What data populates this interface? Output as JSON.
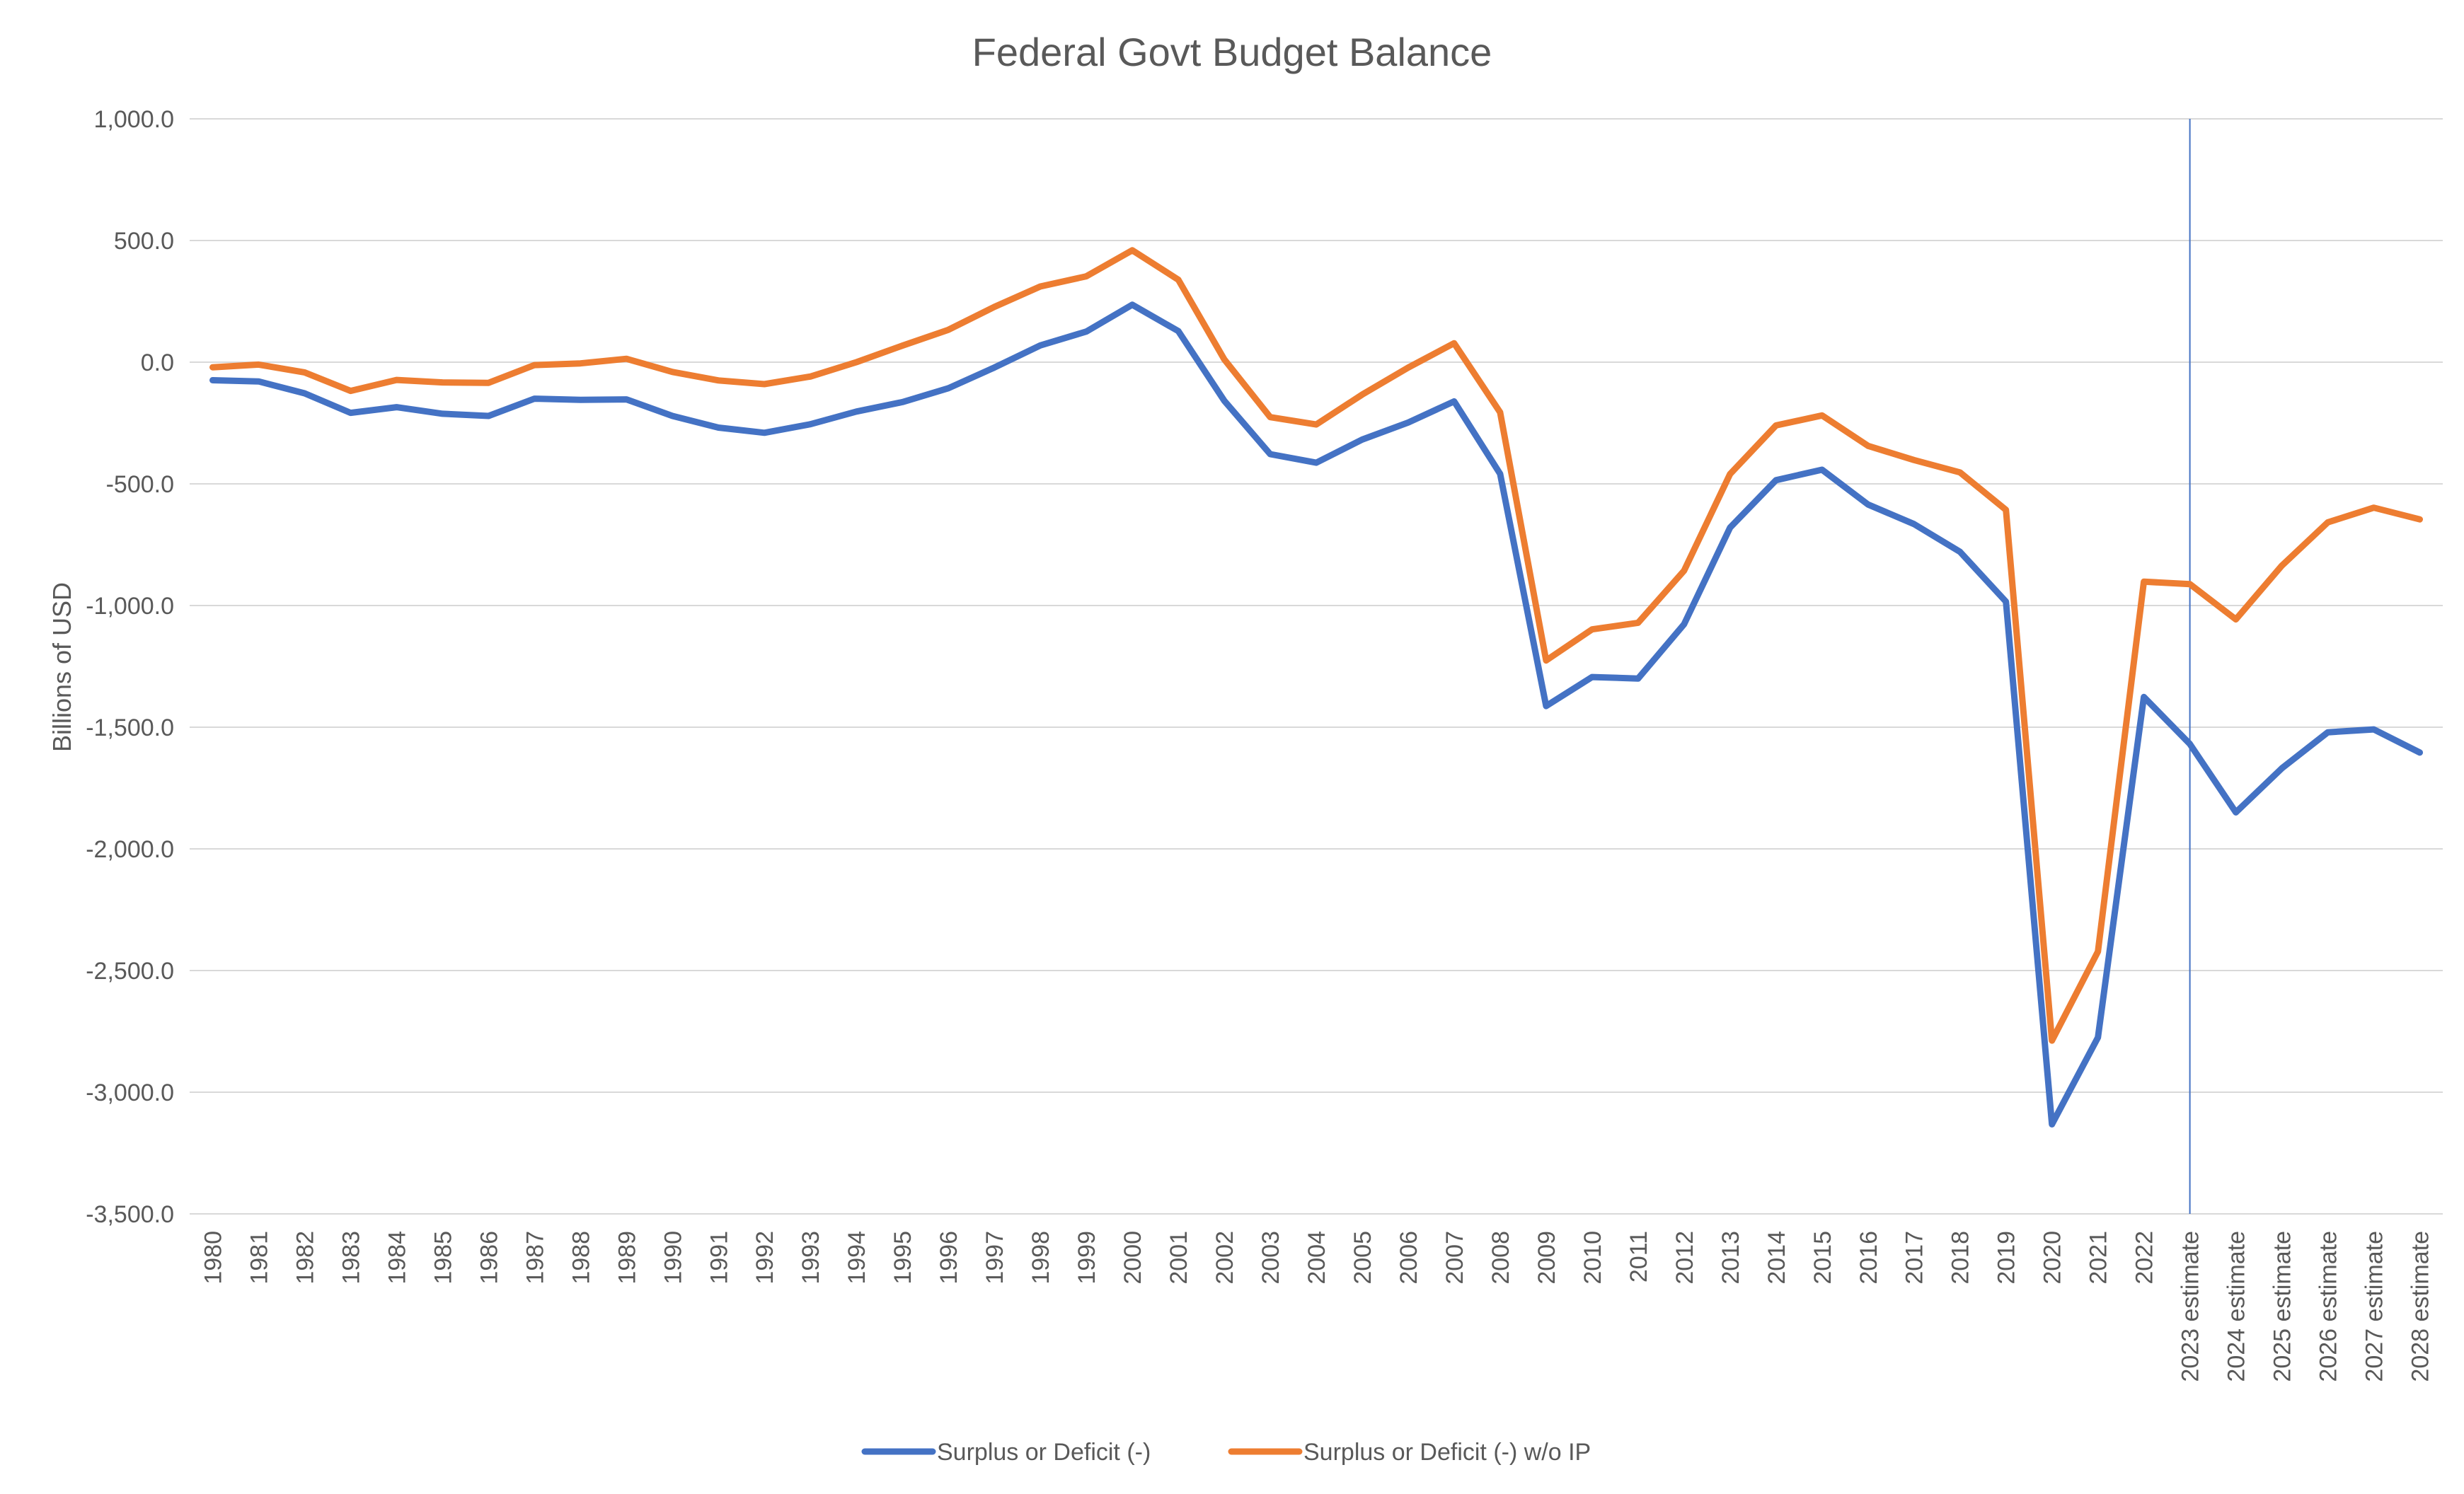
{
  "chart_data": {
    "type": "line",
    "title": "Federal Govt Budget Balance",
    "xlabel": "",
    "ylabel": "Billions of USD",
    "ylim": [
      -3500,
      1000
    ],
    "yticks": [
      1000,
      500,
      0,
      -500,
      -1000,
      -1500,
      -2000,
      -2500,
      -3000,
      -3500
    ],
    "ytick_labels": [
      "1,000.0",
      "500.0",
      "0.0",
      "-500.0",
      "-1,000.0",
      "-1,500.0",
      "-2,000.0",
      "-2,500.0",
      "-3,000.0",
      "-3,500.0"
    ],
    "grid": true,
    "legend": "bottom",
    "vertical_marker": "2023 estimate",
    "categories": [
      "1980",
      "1981",
      "1982",
      "1983",
      "1984",
      "1985",
      "1986",
      "1987",
      "1988",
      "1989",
      "1990",
      "1991",
      "1992",
      "1993",
      "1994",
      "1995",
      "1996",
      "1997",
      "1998",
      "1999",
      "2000",
      "2001",
      "2002",
      "2003",
      "2004",
      "2005",
      "2006",
      "2007",
      "2008",
      "2009",
      "2010",
      "2011",
      "2012",
      "2013",
      "2014",
      "2015",
      "2016",
      "2017",
      "2018",
      "2019",
      "2020",
      "2021",
      "2022",
      "2023 estimate",
      "2024 estimate",
      "2025 estimate",
      "2026 estimate",
      "2027 estimate",
      "2028 estimate"
    ],
    "series": [
      {
        "name": "Surplus or Deficit (-)",
        "color": "#4472C4",
        "values": [
          -74,
          -79,
          -128,
          -208,
          -185,
          -212,
          -221,
          -150,
          -155,
          -153,
          -221,
          -269,
          -290,
          -255,
          -203,
          -164,
          -107,
          -22,
          69,
          126,
          236,
          128,
          -158,
          -378,
          -413,
          -318,
          -248,
          -161,
          -459,
          -1413,
          -1294,
          -1300,
          -1077,
          -680,
          -485,
          -442,
          -585,
          -665,
          -779,
          -984,
          -3132,
          -2775,
          -1376,
          -1569,
          -1850,
          -1669,
          -1521,
          -1509,
          -1604
        ]
      },
      {
        "name": "Surplus or Deficit (-) w/o IP",
        "color": "#ED7D31",
        "values": [
          -21,
          -10,
          -42,
          -118,
          -73,
          -83,
          -85,
          -12,
          -5,
          14,
          -40,
          -75,
          -90,
          -59,
          0,
          68,
          133,
          227,
          311,
          353,
          460,
          339,
          12,
          -226,
          -256,
          -133,
          -22,
          78,
          -206,
          -1226,
          -1098,
          -1071,
          -857,
          -460,
          -260,
          -219,
          -344,
          -402,
          -453,
          -607,
          -2788,
          -2422,
          -902,
          -912,
          -1057,
          -836,
          -658,
          -598,
          -646
        ]
      }
    ]
  }
}
